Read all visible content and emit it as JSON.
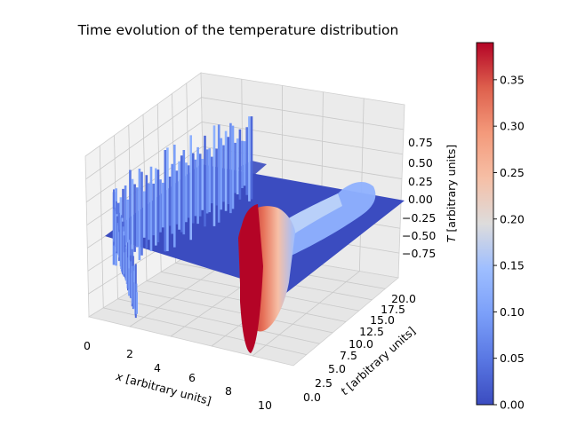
{
  "chart_data": {
    "type": "surface",
    "title": "Time evolution of the temperature distribution",
    "xlabel_var": "x",
    "xlabel_unit": "[arbitrary units]",
    "ylabel_var": "t",
    "ylabel_unit": "[arbitrary units]",
    "zlabel_var": "T",
    "zlabel_unit": "[arbitrary units]",
    "xlim": [
      0,
      10
    ],
    "ylim": [
      0,
      20
    ],
    "zlim": [
      -1,
      1
    ],
    "x_ticks": [
      "0",
      "2",
      "4",
      "6",
      "8",
      "10"
    ],
    "y_ticks": [
      "0.0",
      "2.5",
      "5.0",
      "7.5",
      "10.0",
      "12.5",
      "15.0",
      "17.5",
      "20.0"
    ],
    "z_ticks": [
      "0.75",
      "0.50",
      "0.25",
      "0.00",
      "−0.25",
      "−0.50",
      "−0.75"
    ],
    "colormap": "coolwarm",
    "colorbar_range": [
      0.0,
      0.39
    ],
    "colorbar_ticks": [
      "0.00",
      "0.05",
      "0.10",
      "0.15",
      "0.20",
      "0.25",
      "0.30",
      "0.35"
    ],
    "colors": {
      "cold": "#3b4cc0",
      "neutral": "#dddcdc",
      "hot": "#b40426"
    },
    "grid": true
  }
}
